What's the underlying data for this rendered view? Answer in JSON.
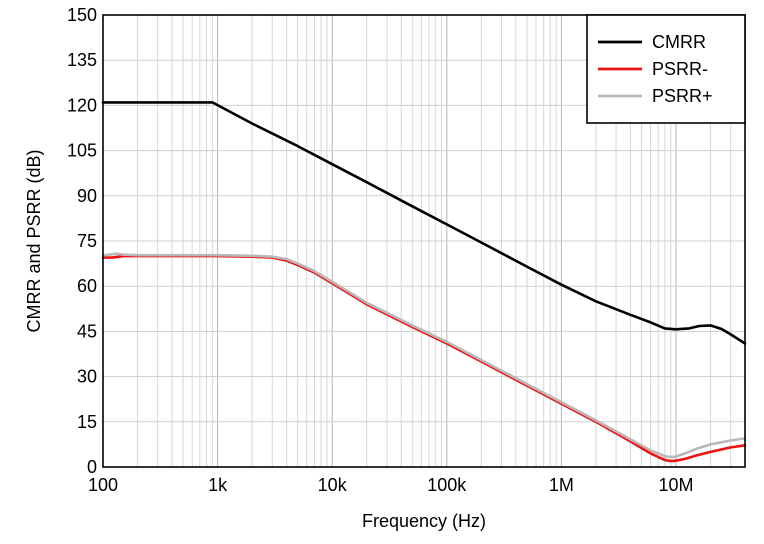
{
  "chart_data": {
    "type": "line",
    "title": "",
    "xlabel": "Frequency (Hz)",
    "ylabel": "CMRR  and PSRR (dB)",
    "xscale": "log",
    "xlim": [
      100,
      40000000
    ],
    "ylim": [
      0,
      150
    ],
    "grid": true,
    "legend_position": "top-right",
    "x_ticks": [
      {
        "value": 100,
        "label": "100"
      },
      {
        "value": 1000,
        "label": "1k"
      },
      {
        "value": 10000,
        "label": "10k"
      },
      {
        "value": 100000,
        "label": "100k"
      },
      {
        "value": 1000000,
        "label": "1M"
      },
      {
        "value": 10000000,
        "label": "10M"
      }
    ],
    "y_ticks": [
      {
        "value": 0,
        "label": "0"
      },
      {
        "value": 15,
        "label": "15"
      },
      {
        "value": 30,
        "label": "30"
      },
      {
        "value": 45,
        "label": "45"
      },
      {
        "value": 60,
        "label": "60"
      },
      {
        "value": 75,
        "label": "75"
      },
      {
        "value": 90,
        "label": "90"
      },
      {
        "value": 105,
        "label": "105"
      },
      {
        "value": 120,
        "label": "120"
      },
      {
        "value": 135,
        "label": "135"
      },
      {
        "value": 150,
        "label": "150"
      }
    ],
    "series": [
      {
        "name": "CMRR",
        "color": "#000000",
        "x": [
          100,
          200,
          500,
          900,
          2000,
          5000,
          10000,
          20000,
          50000,
          100000,
          200000,
          500000,
          1000000,
          2000000,
          4000000,
          6000000,
          8000000,
          10000000,
          13000000,
          16000000,
          20000000,
          25000000,
          30000000,
          40000000
        ],
        "y": [
          121,
          121,
          121,
          121,
          114,
          106.5,
          100.5,
          94.5,
          86.5,
          80.5,
          74.5,
          66.5,
          60.5,
          55,
          50.5,
          48,
          46,
          45.7,
          46,
          46.8,
          47,
          45.8,
          44,
          41
        ]
      },
      {
        "name": "PSRR-",
        "color": "#ee1111",
        "x": [
          100,
          120,
          150,
          200,
          500,
          1000,
          2000,
          3000,
          4000,
          5000,
          7000,
          10000,
          20000,
          50000,
          100000,
          200000,
          500000,
          1000000,
          2000000,
          4000000,
          6000000,
          8000000,
          9000000,
          10000000,
          12000000,
          15000000,
          20000000,
          30000000,
          40000000
        ],
        "y": [
          69.5,
          69.5,
          70,
          70,
          70,
          70,
          69.8,
          69.5,
          68.5,
          67,
          64.5,
          61,
          54,
          46.5,
          41,
          35,
          27,
          21,
          15,
          8.5,
          4.5,
          2.3,
          2,
          2.1,
          2.7,
          3.8,
          5,
          6.5,
          7.2
        ]
      },
      {
        "name": "PSRR+",
        "color": "#b8b8b8",
        "x": [
          100,
          130,
          150,
          200,
          500,
          1000,
          2000,
          3000,
          4000,
          5000,
          7000,
          10000,
          20000,
          50000,
          100000,
          200000,
          500000,
          1000000,
          2000000,
          4000000,
          6000000,
          8000000,
          9000000,
          10000000,
          12000000,
          15000000,
          20000000,
          30000000,
          40000000
        ],
        "y": [
          70.2,
          70.8,
          70.5,
          70.3,
          70.3,
          70.3,
          70.1,
          69.8,
          69,
          67.5,
          65,
          61.5,
          54.5,
          47,
          41.5,
          35.5,
          27.5,
          21.5,
          15.5,
          9.2,
          5.5,
          3.6,
          3.3,
          3.5,
          4.5,
          6,
          7.5,
          8.8,
          9.5
        ]
      }
    ]
  }
}
